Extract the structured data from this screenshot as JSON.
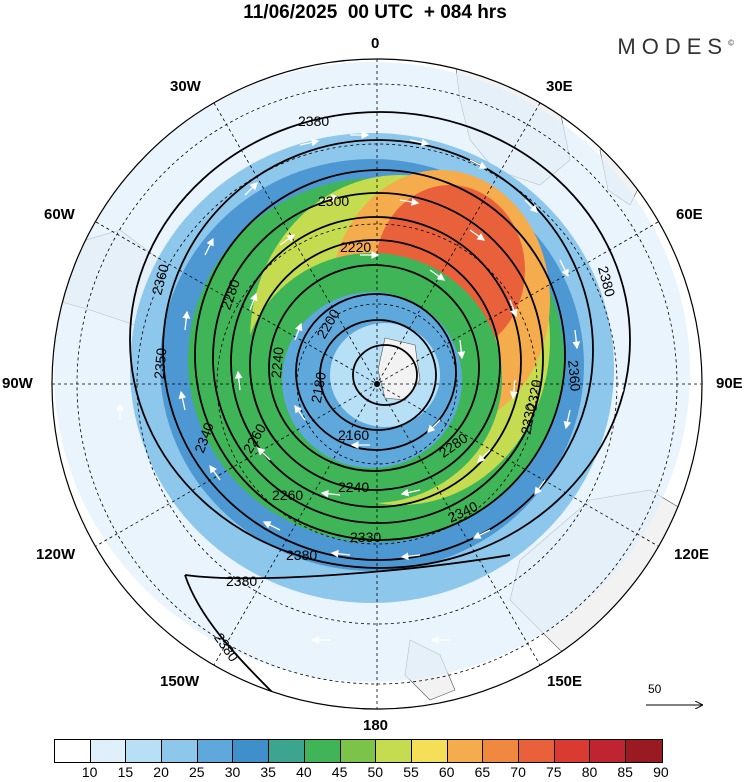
{
  "title": "11/06/2025  00 UTC  + 084 hrs",
  "brand": "MODES",
  "brand_mark": "©",
  "longitude_labels": {
    "top": "0",
    "bottom": "180",
    "left": "90W",
    "right": "90E",
    "nw30": "30W",
    "ne30": "30E",
    "nw60": "60W",
    "ne60": "60E",
    "sw120": "120W",
    "se120": "120E",
    "sw150": "150W",
    "se150": "150E"
  },
  "contour_labels": [
    "2380",
    "2360",
    "2350",
    "2340",
    "2300",
    "2280",
    "2260",
    "2240",
    "2220",
    "2200",
    "2180",
    "2160",
    "2360",
    "2380",
    "2330",
    "2320",
    "2280",
    "2240",
    "2260",
    "2340",
    "2330",
    "2380",
    "2380",
    "2380"
  ],
  "vector_reference": "50",
  "colorbar": {
    "ticks": [
      "10",
      "15",
      "20",
      "25",
      "30",
      "35",
      "40",
      "45",
      "50",
      "55",
      "60",
      "65",
      "70",
      "75",
      "80",
      "85",
      "90"
    ],
    "colors": [
      "#ffffff",
      "#dff0fb",
      "#b7e0f6",
      "#8ec7ec",
      "#5fa8dc",
      "#3f8fca",
      "#3ba58f",
      "#3fb557",
      "#7cc34a",
      "#c6dc50",
      "#f4df57",
      "#f4ac4c",
      "#f08840",
      "#e9613a",
      "#db3a33",
      "#c02430",
      "#9a1a22"
    ]
  },
  "colors": {
    "land": "#f2f2f2",
    "contour": "#000000",
    "wind_arrows": "#ffffff"
  }
}
